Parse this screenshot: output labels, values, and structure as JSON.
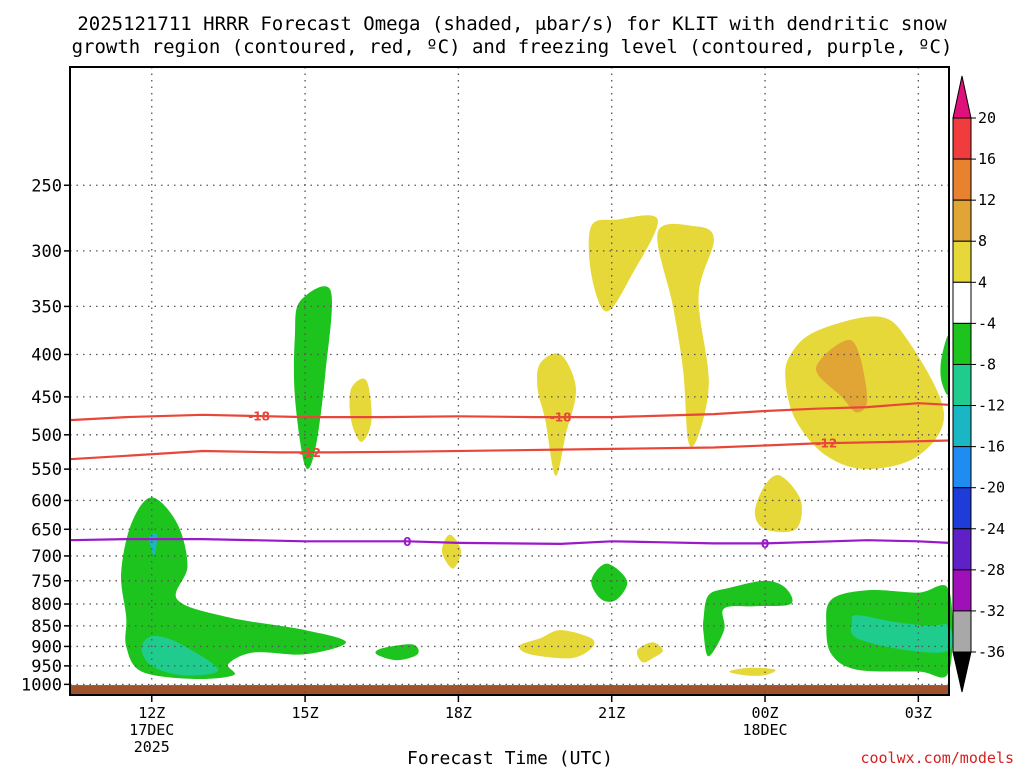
{
  "title": {
    "line1": "2025121711 HRRR Forecast Omega (shaded, μbar/s) for KLIT with dendritic snow",
    "line2": "growth region (contoured, red, ºC) and freezing level (contoured, purple, ºC)"
  },
  "xlabel": "Forecast Time (UTC)",
  "credit": "coolwx.com/models",
  "colors": {
    "grid": "#555555",
    "temp_contour": "#e8463a",
    "freezing_contour": "#9a19c8",
    "ground": "#a0522d"
  },
  "chart_data": {
    "type": "heatmap",
    "x_units": "hours from 2025-12-17 12Z",
    "xlim": [
      -1.6,
      15.6
    ],
    "ylim": [
      1030,
      180
    ],
    "x_ticks": [
      {
        "x": 0,
        "lines": [
          "12Z",
          "17DEC",
          "2025"
        ]
      },
      {
        "x": 3,
        "lines": [
          "15Z"
        ]
      },
      {
        "x": 6,
        "lines": [
          "18Z"
        ]
      },
      {
        "x": 9,
        "lines": [
          "21Z"
        ]
      },
      {
        "x": 12,
        "lines": [
          "00Z",
          "18DEC"
        ]
      },
      {
        "x": 15,
        "lines": [
          "03Z"
        ]
      }
    ],
    "y_ticks": [
      250,
      300,
      350,
      400,
      450,
      500,
      550,
      600,
      650,
      700,
      750,
      800,
      850,
      900,
      950,
      1000
    ],
    "grid": true,
    "ground_pressure": 1002,
    "colorbar": {
      "units": "μbar/s",
      "ticks": [
        20,
        16,
        12,
        8,
        4,
        -4,
        -8,
        -12,
        -16,
        -20,
        -24,
        -28,
        -32,
        -36
      ],
      "bins": [
        {
          "from": 20,
          "to": 16,
          "color": "#f03c3c"
        },
        {
          "from": 16,
          "to": 12,
          "color": "#e8822e"
        },
        {
          "from": 12,
          "to": 8,
          "color": "#e0a535"
        },
        {
          "from": 8,
          "to": 4,
          "color": "#e6d838"
        },
        {
          "from": 4,
          "to": -4,
          "color": "#ffffff"
        },
        {
          "from": -4,
          "to": -8,
          "color": "#1dc41d"
        },
        {
          "from": -8,
          "to": -12,
          "color": "#1fcc8e"
        },
        {
          "from": -12,
          "to": -16,
          "color": "#1ab6c4"
        },
        {
          "from": -16,
          "to": -20,
          "color": "#1e8cf0"
        },
        {
          "from": -20,
          "to": -24,
          "color": "#1e3cd8"
        },
        {
          "from": -24,
          "to": -28,
          "color": "#6020c8"
        },
        {
          "from": -28,
          "to": -32,
          "color": "#a010b8"
        },
        {
          "from": -32,
          "to": -36,
          "color": "#a8a8a8"
        }
      ],
      "top_arrow_color": "#e0107a",
      "bottom_arrow_color": "#000000"
    },
    "omega_regions": [
      {
        "color": "#1dc41d",
        "points": [
          [
            2.9,
            345
          ],
          [
            3.5,
            335
          ],
          [
            3.4,
            420
          ],
          [
            3.2,
            520
          ],
          [
            3.0,
            545
          ],
          [
            2.8,
            450
          ],
          [
            2.8,
            380
          ]
        ]
      },
      {
        "color": "#1dc41d",
        "points": [
          [
            -0.6,
            735
          ],
          [
            -0.4,
            640
          ],
          [
            0,
            595
          ],
          [
            0.5,
            640
          ],
          [
            0.7,
            720
          ],
          [
            0.5,
            790
          ],
          [
            1.5,
            830
          ],
          [
            3.0,
            860
          ],
          [
            3.8,
            890
          ],
          [
            3.0,
            920
          ],
          [
            2.0,
            915
          ],
          [
            1.5,
            945
          ],
          [
            1.6,
            975
          ],
          [
            0.8,
            985
          ],
          [
            -0.2,
            965
          ],
          [
            -0.5,
            900
          ],
          [
            -0.5,
            830
          ]
        ]
      },
      {
        "color": "#1fcc8e",
        "points": [
          [
            0.0,
            875
          ],
          [
            0.5,
            890
          ],
          [
            1.3,
            960
          ],
          [
            0.6,
            975
          ],
          [
            0.0,
            950
          ],
          [
            -0.2,
            905
          ]
        ]
      },
      {
        "color": "#1ab6c4",
        "points": [
          [
            -0.05,
            665
          ],
          [
            0.1,
            660
          ],
          [
            0.05,
            700
          ]
        ]
      },
      {
        "color": "#1dc41d",
        "points": [
          [
            4.5,
            905
          ],
          [
            5.1,
            895
          ],
          [
            5.2,
            920
          ],
          [
            4.8,
            935
          ],
          [
            4.4,
            920
          ]
        ]
      },
      {
        "color": "#1dc41d",
        "points": [
          [
            8.6,
            750
          ],
          [
            8.9,
            715
          ],
          [
            9.3,
            750
          ],
          [
            9.1,
            790
          ],
          [
            8.8,
            790
          ]
        ]
      },
      {
        "color": "#1dc41d",
        "points": [
          [
            10.9,
            780
          ],
          [
            11.3,
            765
          ],
          [
            12.0,
            750
          ],
          [
            12.4,
            765
          ],
          [
            12.5,
            800
          ],
          [
            11.8,
            805
          ],
          [
            11.2,
            810
          ],
          [
            11.2,
            860
          ],
          [
            10.9,
            925
          ],
          [
            10.8,
            870
          ],
          [
            10.8,
            830
          ]
        ]
      },
      {
        "color": "#1dc41d",
        "points": [
          [
            13.3,
            790
          ],
          [
            14.0,
            770
          ],
          [
            15.0,
            775
          ],
          [
            15.6,
            770
          ],
          [
            15.6,
            965
          ],
          [
            15.0,
            965
          ],
          [
            13.8,
            960
          ],
          [
            13.3,
            920
          ],
          [
            13.2,
            850
          ]
        ]
      },
      {
        "color": "#1fcc8e",
        "points": [
          [
            13.8,
            825
          ],
          [
            14.5,
            840
          ],
          [
            15.2,
            850
          ],
          [
            15.6,
            850
          ],
          [
            15.6,
            910
          ],
          [
            14.8,
            910
          ],
          [
            13.8,
            880
          ],
          [
            13.7,
            840
          ]
        ]
      },
      {
        "color": "#1dc41d",
        "points": [
          [
            15.45,
            405
          ],
          [
            15.6,
            380
          ],
          [
            15.6,
            445
          ],
          [
            15.45,
            430
          ]
        ]
      },
      {
        "color": "#e6d838",
        "points": [
          [
            3.9,
            440
          ],
          [
            4.2,
            430
          ],
          [
            4.3,
            480
          ],
          [
            4.1,
            510
          ],
          [
            3.9,
            480
          ]
        ]
      },
      {
        "color": "#e6d838",
        "points": [
          [
            7.6,
            410
          ],
          [
            8.0,
            400
          ],
          [
            8.3,
            440
          ],
          [
            8.1,
            500
          ],
          [
            7.9,
            560
          ],
          [
            7.7,
            480
          ],
          [
            7.55,
            440
          ]
        ]
      },
      {
        "color": "#e6d838",
        "points": [
          [
            5.7,
            678
          ],
          [
            5.85,
            660
          ],
          [
            6.05,
            690
          ],
          [
            5.9,
            725
          ],
          [
            5.7,
            700
          ]
        ]
      },
      {
        "color": "#e6d838",
        "points": [
          [
            7.2,
            898
          ],
          [
            7.6,
            880
          ],
          [
            8.0,
            860
          ],
          [
            8.6,
            880
          ],
          [
            8.6,
            905
          ],
          [
            8.2,
            930
          ],
          [
            7.4,
            920
          ]
        ]
      },
      {
        "color": "#e6d838",
        "points": [
          [
            9.5,
            910
          ],
          [
            9.8,
            890
          ],
          [
            10.0,
            910
          ],
          [
            9.8,
            930
          ],
          [
            9.6,
            940
          ]
        ]
      },
      {
        "color": "#e6d838",
        "points": [
          [
            9.5,
            910
          ],
          [
            9.8,
            890
          ],
          [
            10.0,
            910
          ],
          [
            9.8,
            930
          ],
          [
            9.6,
            940
          ]
        ]
      },
      {
        "color": "#e6d838",
        "points": [
          [
            11.3,
            965
          ],
          [
            11.7,
            955
          ],
          [
            12.2,
            960
          ],
          [
            12.0,
            975
          ],
          [
            11.6,
            975
          ]
        ]
      },
      {
        "color": "#e6d838",
        "points": [
          [
            8.6,
            280
          ],
          [
            9.1,
            275
          ],
          [
            9.9,
            275
          ],
          [
            9.4,
            320
          ],
          [
            8.9,
            355
          ],
          [
            8.6,
            320
          ]
        ]
      },
      {
        "color": "#e6d838",
        "points": [
          [
            9.9,
            285
          ],
          [
            10.6,
            280
          ],
          [
            11.0,
            290
          ],
          [
            10.7,
            340
          ],
          [
            10.9,
            430
          ],
          [
            10.7,
            500
          ],
          [
            10.5,
            510
          ],
          [
            10.4,
            420
          ],
          [
            10.2,
            350
          ]
        ]
      },
      {
        "color": "#e6d838",
        "points": [
          [
            11.8,
            620
          ],
          [
            12.0,
            575
          ],
          [
            12.3,
            560
          ],
          [
            12.7,
            600
          ],
          [
            12.6,
            650
          ],
          [
            12.0,
            650
          ]
        ]
      },
      {
        "color": "#e6d838",
        "points": [
          [
            12.5,
            400
          ],
          [
            13.0,
            375
          ],
          [
            14.2,
            360
          ],
          [
            14.8,
            385
          ],
          [
            15.5,
            470
          ],
          [
            15.0,
            530
          ],
          [
            14.0,
            550
          ],
          [
            13.2,
            530
          ],
          [
            12.6,
            480
          ],
          [
            12.4,
            430
          ]
        ]
      },
      {
        "color": "#e0a535",
        "points": [
          [
            13.0,
            415
          ],
          [
            13.7,
            385
          ],
          [
            14.0,
            450
          ],
          [
            13.8,
            470
          ],
          [
            13.5,
            450
          ]
        ]
      }
    ],
    "contours": [
      {
        "label": "-18",
        "color": "#e8463a",
        "points": [
          [
            -1.6,
            480
          ],
          [
            -0.5,
            476
          ],
          [
            1.0,
            473
          ],
          [
            3.0,
            476
          ],
          [
            4.5,
            476
          ],
          [
            6.0,
            475
          ],
          [
            7.5,
            476
          ],
          [
            9.0,
            476
          ],
          [
            10.0,
            474
          ],
          [
            11.0,
            472
          ],
          [
            12.0,
            468
          ],
          [
            13.0,
            465
          ],
          [
            14.0,
            463
          ],
          [
            15.0,
            458
          ],
          [
            15.6,
            460
          ]
        ],
        "label_x": [
          2.1,
          8.0
        ]
      },
      {
        "label": "-12",
        "color": "#e8463a",
        "points": [
          [
            -1.6,
            535
          ],
          [
            -0.5,
            530
          ],
          [
            1.0,
            523
          ],
          [
            2.5,
            525
          ],
          [
            3.5,
            525
          ],
          [
            5.0,
            524
          ],
          [
            7.0,
            522
          ],
          [
            9.0,
            520
          ],
          [
            11.0,
            518
          ],
          [
            12.0,
            515
          ],
          [
            13.0,
            512
          ],
          [
            14.5,
            510
          ],
          [
            15.6,
            508
          ]
        ],
        "label_x": [
          3.1,
          13.2
        ]
      },
      {
        "label": "0",
        "color": "#9a19c8",
        "points": [
          [
            -1.6,
            670
          ],
          [
            -0.5,
            668
          ],
          [
            1.0,
            668
          ],
          [
            3.0,
            672
          ],
          [
            5.0,
            672
          ],
          [
            6.0,
            675
          ],
          [
            7.0,
            676
          ],
          [
            8.0,
            677
          ],
          [
            9.0,
            672
          ],
          [
            10.0,
            674
          ],
          [
            11.0,
            676
          ],
          [
            12.0,
            676
          ],
          [
            13.0,
            673
          ],
          [
            14.0,
            670
          ],
          [
            15.0,
            672
          ],
          [
            15.6,
            675
          ]
        ],
        "label_x": [
          5.0,
          12.0
        ]
      }
    ]
  }
}
